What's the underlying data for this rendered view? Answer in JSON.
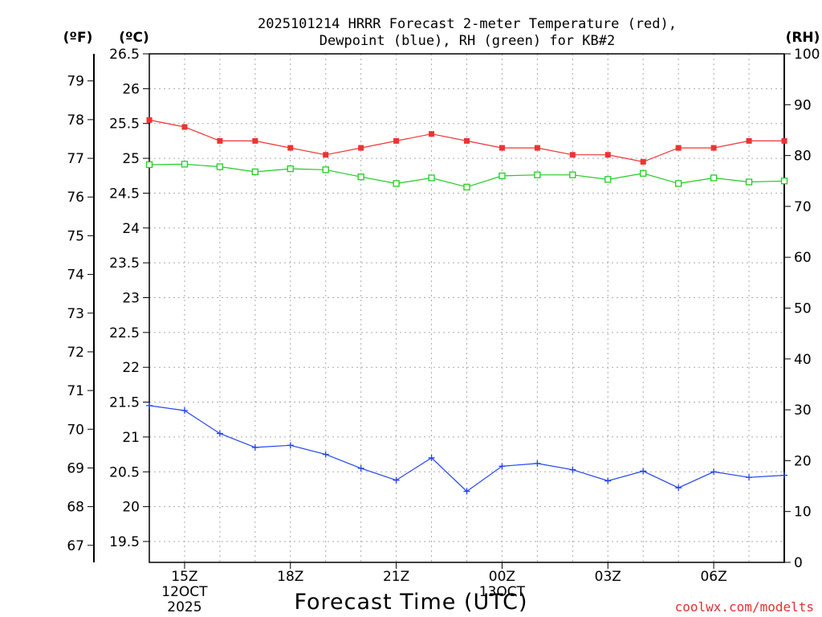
{
  "chart_data": {
    "type": "line",
    "title_line1": "2025101214 HRRR Forecast 2-meter Temperature (red),",
    "title_line2": "Dewpoint (blue), RH (green) for KB#2",
    "xlabel": "Forecast Time (UTC)",
    "credit": "coolwx.com/modelts",
    "unit_labels": {
      "fahrenheit": "(ºF)",
      "celsius": "(ºC)",
      "rh": "(RH)"
    },
    "x_range": [
      0,
      18
    ],
    "x_ticks": [
      {
        "x": 1,
        "line1": "15Z",
        "line2": "12OCT",
        "line3": "2025"
      },
      {
        "x": 4,
        "line1": "18Z",
        "line2": "",
        "line3": ""
      },
      {
        "x": 7,
        "line1": "21Z",
        "line2": "",
        "line3": ""
      },
      {
        "x": 10,
        "line1": "00Z",
        "line2": "13OCT",
        "line3": ""
      },
      {
        "x": 13,
        "line1": "03Z",
        "line2": "",
        "line3": ""
      },
      {
        "x": 16,
        "line1": "06Z",
        "line2": "",
        "line3": ""
      }
    ],
    "celsius_axis": {
      "range": [
        19.2,
        26.5
      ],
      "ticks": [
        "19.5",
        "20",
        "20.5",
        "21",
        "21.5",
        "22",
        "22.5",
        "23",
        "23.5",
        "24",
        "24.5",
        "25",
        "25.5",
        "26",
        "26.5"
      ]
    },
    "fahrenheit_axis": {
      "ticks": [
        "67",
        "68",
        "69",
        "70",
        "71",
        "72",
        "73",
        "74",
        "75",
        "76",
        "77",
        "78",
        "79"
      ]
    },
    "rh_axis": {
      "range": [
        0,
        100
      ],
      "ticks": [
        "0",
        "10",
        "20",
        "30",
        "40",
        "50",
        "60",
        "70",
        "80",
        "90",
        "100"
      ]
    },
    "series": [
      {
        "name": "2-meter Temperature",
        "axis": "celsius",
        "color": "#ee3333",
        "marker": "filled-square",
        "x": [
          0,
          1,
          2,
          3,
          4,
          5,
          6,
          7,
          8,
          9,
          10,
          11,
          12,
          13,
          14,
          15,
          16,
          17,
          18
        ],
        "values": [
          25.55,
          25.45,
          25.25,
          25.25,
          25.15,
          25.05,
          25.15,
          25.25,
          25.35,
          25.25,
          25.15,
          25.15,
          25.05,
          25.05,
          24.95,
          25.15,
          25.15,
          25.25,
          25.25
        ]
      },
      {
        "name": "Dewpoint",
        "axis": "celsius",
        "color": "#2244ee",
        "marker": "plus",
        "x": [
          0,
          1,
          2,
          3,
          4,
          5,
          6,
          7,
          8,
          9,
          10,
          11,
          12,
          13,
          14,
          15,
          16,
          17,
          18
        ],
        "values": [
          21.45,
          21.38,
          21.05,
          20.85,
          20.88,
          20.75,
          20.55,
          20.38,
          20.7,
          20.22,
          20.58,
          20.62,
          20.53,
          20.37,
          20.51,
          20.27,
          20.5,
          20.42,
          20.45
        ]
      },
      {
        "name": "RH",
        "axis": "rh",
        "color": "#22cc22",
        "marker": "open-square",
        "x": [
          0,
          1,
          2,
          3,
          4,
          5,
          6,
          7,
          8,
          9,
          10,
          11,
          12,
          13,
          14,
          15,
          16,
          17,
          18
        ],
        "values": [
          78.2,
          78.3,
          77.8,
          76.8,
          77.4,
          77.2,
          75.8,
          74.5,
          75.6,
          73.8,
          76.0,
          76.2,
          76.2,
          75.3,
          76.5,
          74.5,
          75.6,
          74.8,
          75.0
        ]
      }
    ]
  }
}
